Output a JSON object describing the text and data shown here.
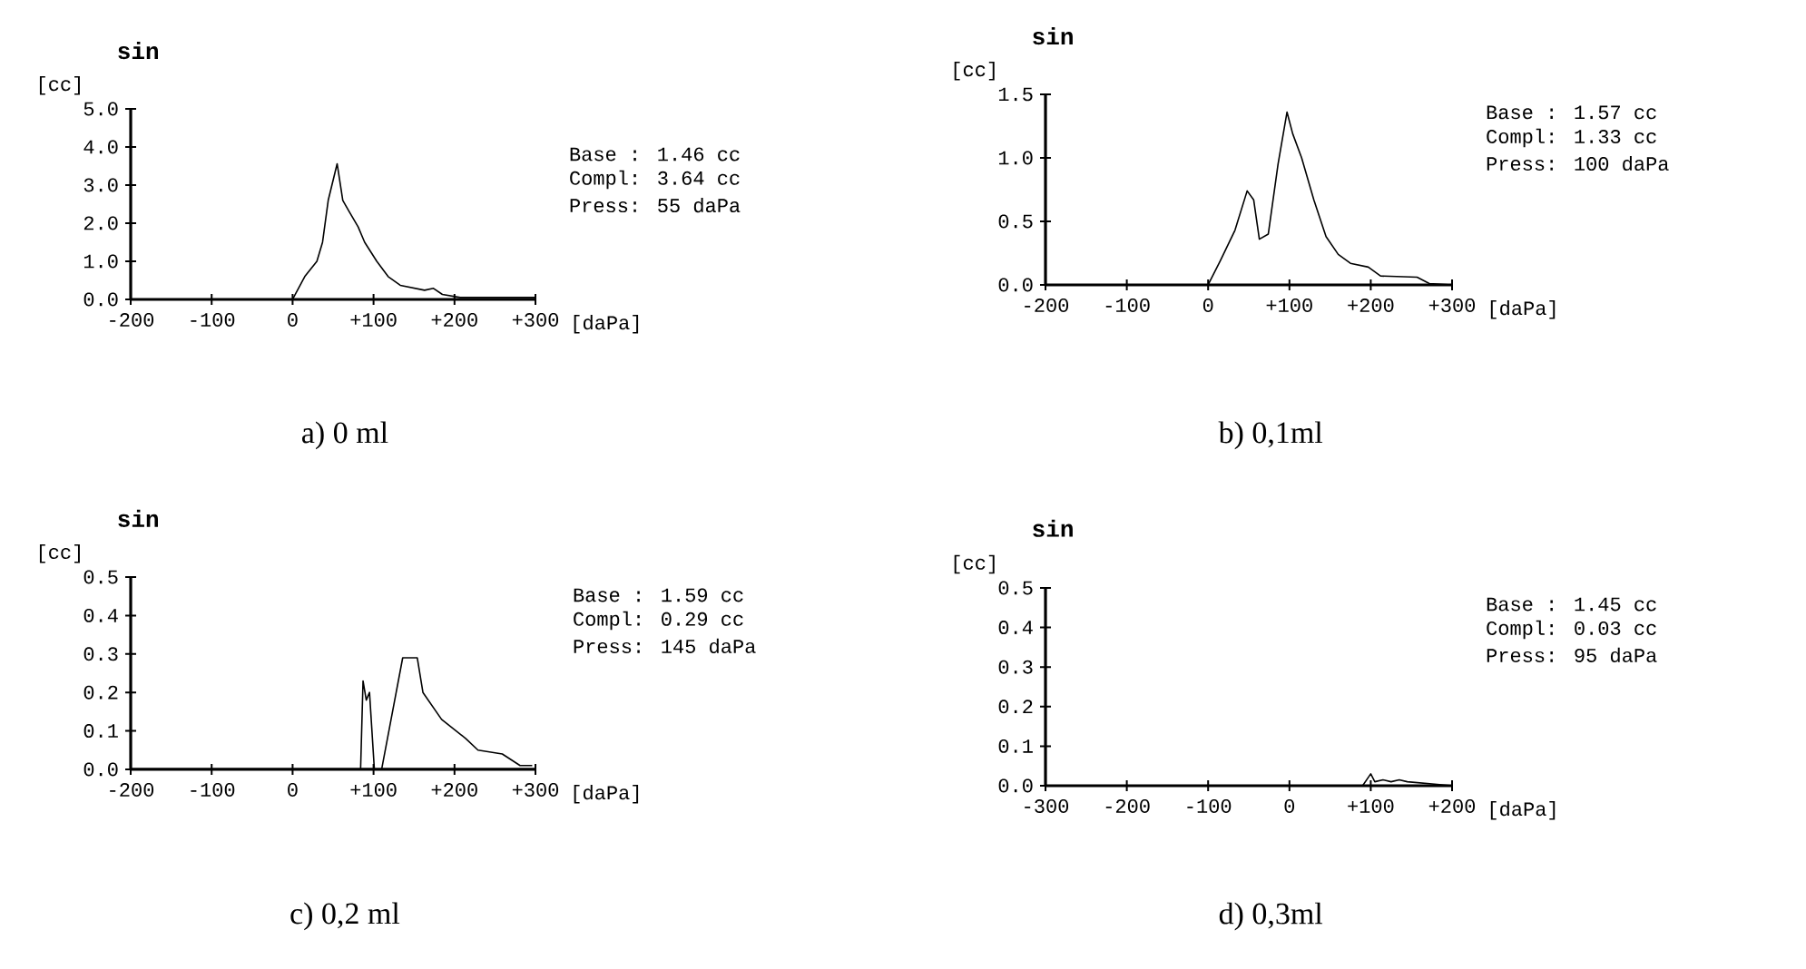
{
  "chart_data": [
    {
      "type": "line",
      "title": "sin",
      "xlabel": "[daPa]",
      "ylabel": "[cc]",
      "xlim": [
        -200,
        300
      ],
      "ylim": [
        0,
        5
      ],
      "xticks": [
        {
          "value": -200,
          "label": "-200"
        },
        {
          "value": -100,
          "label": "-100"
        },
        {
          "value": 0,
          "label": "0"
        },
        {
          "value": 100,
          "label": "+100"
        },
        {
          "value": 200,
          "label": "+200"
        },
        {
          "value": 300,
          "label": "+300"
        }
      ],
      "yticks": [
        {
          "value": 0,
          "label": "0.0"
        },
        {
          "value": 1,
          "label": "1.0"
        },
        {
          "value": 2,
          "label": "2.0"
        },
        {
          "value": 3,
          "label": "3.0"
        },
        {
          "value": 4,
          "label": "4.0"
        },
        {
          "value": 5,
          "label": "5.0"
        }
      ],
      "x": [
        -200,
        -100,
        0,
        15,
        30,
        37,
        44,
        55,
        62,
        70,
        81,
        89,
        104,
        118,
        133,
        163,
        174,
        185,
        207,
        250,
        300
      ],
      "series": [
        {
          "color": "#000000",
          "values": [
            0,
            0,
            0,
            0.6,
            1.0,
            1.5,
            2.6,
            3.56,
            2.6,
            2.3,
            1.9,
            1.5,
            1.0,
            0.6,
            0.37,
            0.24,
            0.29,
            0.13,
            0.05,
            0.05,
            0.05
          ]
        }
      ],
      "annotations": [
        "Base : 1.46 cc",
        "Compl: 3.64 cc",
        "Press:   55 daPa",
        "a) 0 ml"
      ]
    },
    {
      "type": "line",
      "title": "sin",
      "xlabel": "[daPa]",
      "ylabel": "[cc]",
      "xlim": [
        -200,
        300
      ],
      "ylim": [
        0,
        1.5
      ],
      "xticks": [
        {
          "value": -200,
          "label": "-200"
        },
        {
          "value": -100,
          "label": "-100"
        },
        {
          "value": 0,
          "label": "0"
        },
        {
          "value": 100,
          "label": "+100"
        },
        {
          "value": 200,
          "label": "+200"
        },
        {
          "value": 300,
          "label": "+300"
        }
      ],
      "yticks": [
        {
          "value": 0,
          "label": "0.0"
        },
        {
          "value": 0.5,
          "label": "0.5"
        },
        {
          "value": 1,
          "label": "1.0"
        },
        {
          "value": 1.5,
          "label": "1.5"
        }
      ],
      "x": [
        -200,
        -100,
        0,
        15,
        33,
        48,
        56,
        63,
        74,
        86,
        97,
        104,
        115,
        130,
        145,
        160,
        175,
        197,
        212,
        257,
        272,
        300
      ],
      "series": [
        {
          "color": "#000000",
          "values": [
            0,
            0,
            0,
            0.19,
            0.43,
            0.74,
            0.67,
            0.36,
            0.4,
            0.95,
            1.36,
            1.19,
            1.0,
            0.67,
            0.38,
            0.24,
            0.17,
            0.14,
            0.07,
            0.06,
            0.01,
            0
          ]
        }
      ],
      "annotations": [
        "Base : 1.57 cc",
        "Compl: 1.33 cc",
        "Press:  100 daPa",
        "b) 0,1ml"
      ]
    },
    {
      "type": "line",
      "title": "sin",
      "xlabel": "[daPa]",
      "ylabel": "[cc]",
      "xlim": [
        -200,
        300
      ],
      "ylim": [
        0,
        0.5
      ],
      "xticks": [
        {
          "value": -200,
          "label": "-200"
        },
        {
          "value": -100,
          "label": "-100"
        },
        {
          "value": 0,
          "label": "0"
        },
        {
          "value": 100,
          "label": "+100"
        },
        {
          "value": 200,
          "label": "+200"
        },
        {
          "value": 300,
          "label": "+300"
        }
      ],
      "yticks": [
        {
          "value": 0,
          "label": "0.0"
        },
        {
          "value": 0.1,
          "label": "0.1"
        },
        {
          "value": 0.2,
          "label": "0.2"
        },
        {
          "value": 0.3,
          "label": "0.3"
        },
        {
          "value": 0.4,
          "label": "0.4"
        },
        {
          "value": 0.5,
          "label": "0.5"
        }
      ],
      "x": [
        -200,
        -100,
        0,
        84,
        87,
        91,
        95,
        101,
        110,
        136,
        154,
        161,
        184,
        214,
        229,
        259,
        281,
        296
      ],
      "series": [
        {
          "color": "#000000",
          "values": [
            0,
            0,
            0,
            0,
            0.23,
            0.18,
            0.2,
            0,
            0,
            0.29,
            0.29,
            0.2,
            0.13,
            0.08,
            0.05,
            0.04,
            0.01,
            0.01
          ]
        }
      ],
      "annotations": [
        "Base : 1.59 cc",
        "Compl: 0.29 cc",
        "Press:  145 daPa",
        "c) 0,2 ml"
      ]
    },
    {
      "type": "line",
      "title": "sin",
      "xlabel": "[daPa]",
      "ylabel": "[cc]",
      "xlim": [
        -300,
        200
      ],
      "ylim": [
        0,
        0.5
      ],
      "xticks": [
        {
          "value": -300,
          "label": "-300"
        },
        {
          "value": -200,
          "label": "-200"
        },
        {
          "value": -100,
          "label": "-100"
        },
        {
          "value": 0,
          "label": "0"
        },
        {
          "value": 100,
          "label": "+100"
        },
        {
          "value": 200,
          "label": "+200"
        }
      ],
      "yticks": [
        {
          "value": 0,
          "label": "0.0"
        },
        {
          "value": 0.1,
          "label": "0.1"
        },
        {
          "value": 0.2,
          "label": "0.2"
        },
        {
          "value": 0.3,
          "label": "0.3"
        },
        {
          "value": 0.4,
          "label": "0.4"
        },
        {
          "value": 0.5,
          "label": "0.5"
        }
      ],
      "x": [
        -300,
        -200,
        -100,
        0,
        90,
        100,
        105,
        115,
        125,
        135,
        145,
        200
      ],
      "series": [
        {
          "color": "#000000",
          "values": [
            0,
            0,
            0,
            0,
            0,
            0.03,
            0.01,
            0.015,
            0.01,
            0.015,
            0.01,
            0
          ]
        }
      ],
      "annotations": [
        "Base : 1.45 cc",
        "Compl: 0.03 cc",
        "Press:   95 daPa",
        "d) 0,3ml"
      ]
    }
  ]
}
